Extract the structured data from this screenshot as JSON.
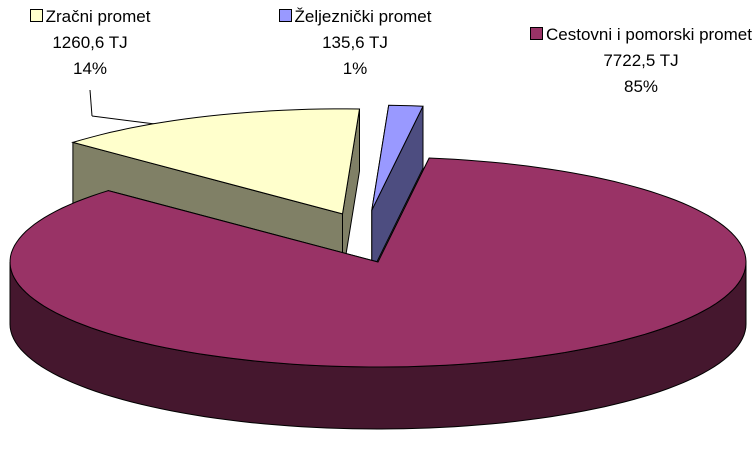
{
  "chart_data": {
    "type": "pie3d",
    "categories": [
      "Zračni promet",
      "Željeznički promet",
      "Cestovni i pomorski promet"
    ],
    "values": [
      1260.6,
      135.6,
      7722.5
    ],
    "value_labels": [
      "1260,6 TJ",
      "135,6 TJ",
      "7722,5 TJ"
    ],
    "percent_labels": [
      "14%",
      "1%",
      "85%"
    ],
    "colors": [
      "#ffffcc",
      "#9999ff",
      "#993366"
    ]
  }
}
